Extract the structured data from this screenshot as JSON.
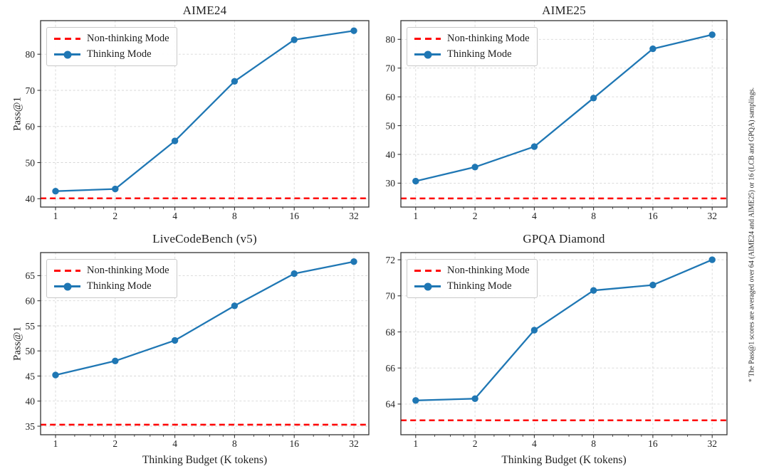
{
  "figure_note": "* The Pass@1 scores are averaged over 64 (AIME24 and AIME25) or 16 (LCB and GPQA) samplings.",
  "legend": {
    "non_thinking": "Non-thinking Mode",
    "thinking": "Thinking Mode"
  },
  "colors": {
    "thinking_line": "#1f77b4",
    "non_thinking_line": "#ff0000",
    "grid": "#d7d7d7",
    "axes": "#333333",
    "text": "#1f1f1f"
  },
  "chart_data": [
    {
      "id": "aime24",
      "type": "line",
      "title": "AIME24",
      "xlabel": "",
      "ylabel": "Pass@1",
      "xscale": "log2",
      "grid": true,
      "legend_position": "upper left",
      "x": [
        1,
        2,
        4,
        8,
        16,
        32
      ],
      "xticklabels": [
        "1",
        "2",
        "4",
        "8",
        "16",
        "32"
      ],
      "series": [
        {
          "name": "Non-thinking Mode",
          "type": "hline",
          "value": 40.1
        },
        {
          "name": "Thinking Mode",
          "type": "line-marker",
          "values": [
            42.1,
            42.7,
            56.0,
            72.5,
            84.0,
            86.5
          ]
        }
      ],
      "yticks": [
        40,
        50,
        60,
        70,
        80
      ],
      "ylim": [
        37.7,
        89.3
      ]
    },
    {
      "id": "aime25",
      "type": "line",
      "title": "AIME25",
      "xlabel": "",
      "ylabel": "",
      "xscale": "log2",
      "grid": true,
      "legend_position": "upper left",
      "x": [
        1,
        2,
        4,
        8,
        16,
        32
      ],
      "xticklabels": [
        "1",
        "2",
        "4",
        "8",
        "16",
        "32"
      ],
      "series": [
        {
          "name": "Non-thinking Mode",
          "type": "hline",
          "value": 24.7
        },
        {
          "name": "Thinking Mode",
          "type": "line-marker",
          "values": [
            30.7,
            35.6,
            42.7,
            59.6,
            76.7,
            81.6
          ]
        }
      ],
      "yticks": [
        30,
        40,
        50,
        60,
        70,
        80
      ],
      "ylim": [
        21.7,
        86.5
      ]
    },
    {
      "id": "livecodebench-v5",
      "type": "line",
      "title": "LiveCodeBench (v5)",
      "xlabel": "Thinking Budget (K tokens)",
      "ylabel": "Pass@1",
      "xscale": "log2",
      "grid": true,
      "legend_position": "upper left",
      "x": [
        1,
        2,
        4,
        8,
        16,
        32
      ],
      "xticklabels": [
        "1",
        "2",
        "4",
        "8",
        "16",
        "32"
      ],
      "series": [
        {
          "name": "Non-thinking Mode",
          "type": "hline",
          "value": 35.3
        },
        {
          "name": "Thinking Mode",
          "type": "line-marker",
          "values": [
            45.2,
            48.0,
            52.1,
            59.0,
            65.4,
            67.8
          ]
        }
      ],
      "yticks": [
        35,
        40,
        45,
        50,
        55,
        60,
        65
      ],
      "ylim": [
        33.3,
        69.6
      ]
    },
    {
      "id": "gpqa-diamond",
      "type": "line",
      "title": "GPQA Diamond",
      "xlabel": "Thinking Budget (K tokens)",
      "ylabel": "",
      "xscale": "log2",
      "grid": true,
      "legend_position": "upper left",
      "x": [
        1,
        2,
        4,
        8,
        16,
        32
      ],
      "xticklabels": [
        "1",
        "2",
        "4",
        "8",
        "16",
        "32"
      ],
      "series": [
        {
          "name": "Non-thinking Mode",
          "type": "hline",
          "value": 63.1
        },
        {
          "name": "Thinking Mode",
          "type": "line-marker",
          "values": [
            64.2,
            64.3,
            68.1,
            70.3,
            70.6,
            72.0
          ]
        }
      ],
      "yticks": [
        64,
        66,
        68,
        70,
        72
      ],
      "ylim": [
        62.3,
        72.4
      ]
    }
  ]
}
